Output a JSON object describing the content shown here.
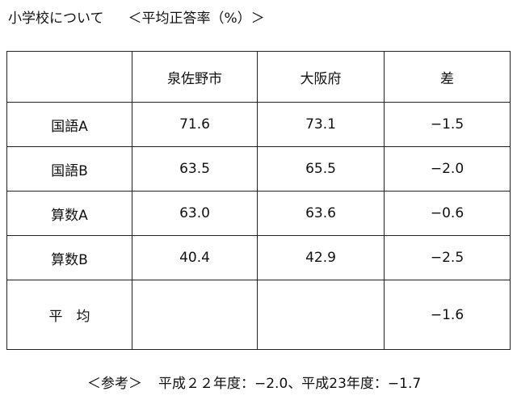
{
  "header": {
    "title": "小学校について",
    "subtitle": "＜平均正答率（%）＞"
  },
  "table": {
    "columns": [
      "泉佐野市",
      "大阪府",
      "差"
    ],
    "rows": [
      {
        "label": "国語A",
        "cells": [
          "71.6",
          "73.1",
          "−1.5"
        ]
      },
      {
        "label": "国語B",
        "cells": [
          "63.5",
          "65.5",
          "−2.0"
        ]
      },
      {
        "label": "算数A",
        "cells": [
          "63.0",
          "63.6",
          "−0.6"
        ]
      },
      {
        "label": "算数B",
        "cells": [
          "40.4",
          "42.9",
          "−2.5"
        ]
      }
    ],
    "average": {
      "label": "平　均",
      "diff": "−1.6"
    }
  },
  "footer": {
    "reference": "＜参考＞",
    "note": "平成２２年度：−2.0、平成23年度：−1.7"
  }
}
